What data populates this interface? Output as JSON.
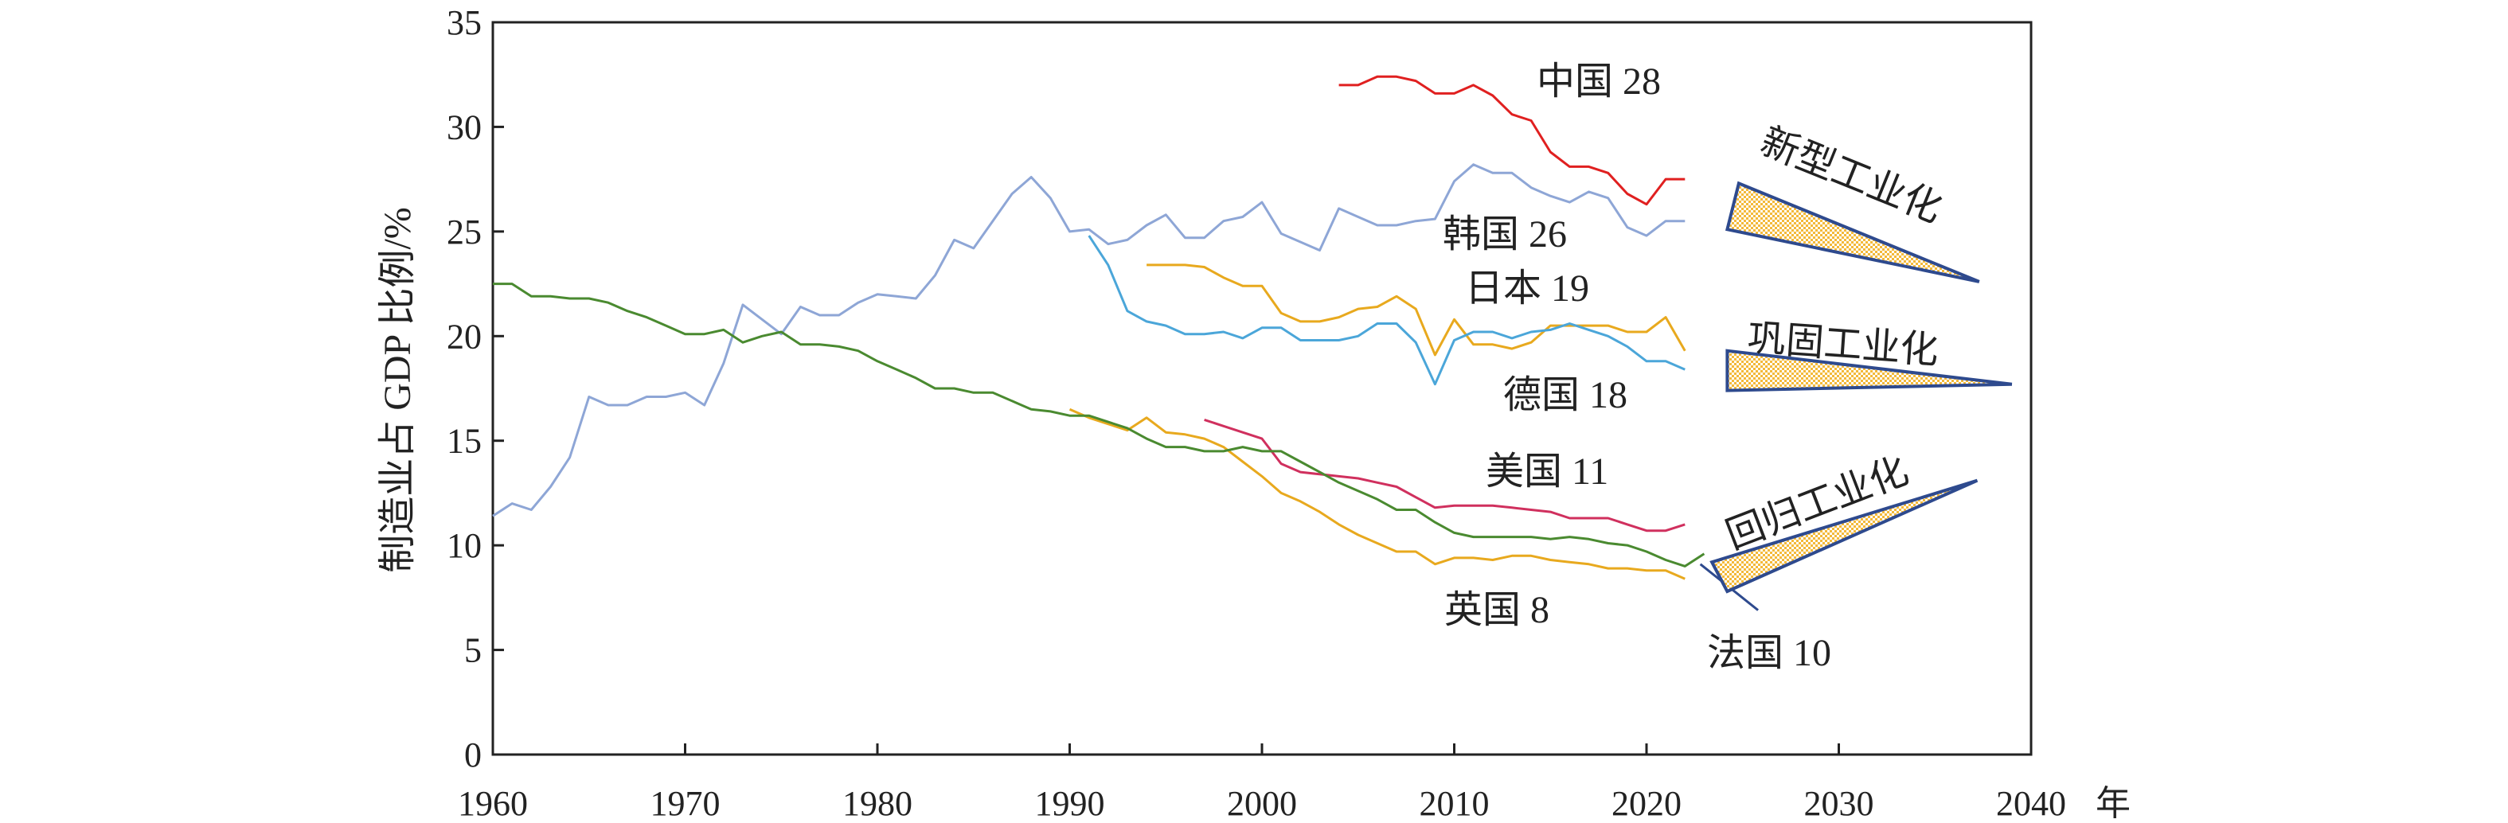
{
  "chart_data": {
    "type": "line",
    "title": "",
    "ylabel": "制造业占 GDP 比例/%",
    "xlabel_unit": "年",
    "xlim": [
      1960,
      2040
    ],
    "ylim": [
      0,
      35
    ],
    "xticks": [
      1960,
      1970,
      1980,
      1990,
      2000,
      2010,
      2020,
      2030,
      2040
    ],
    "yticks": [
      0,
      5,
      10,
      15,
      20,
      25,
      30,
      35
    ],
    "grid": false,
    "series": [
      {
        "name": "中国 28",
        "color": "#e02020",
        "x_start": 2004,
        "values": [
          32.0,
          32.0,
          32.4,
          32.4,
          32.2,
          31.6,
          31.6,
          32.0,
          31.5,
          30.6,
          30.3,
          28.8,
          28.1,
          28.1,
          27.8,
          26.8,
          26.3,
          27.5,
          27.5
        ]
      },
      {
        "name": "韩国 26",
        "color": "#8ea6d6",
        "x_start": 1960,
        "values": [
          11.4,
          12.0,
          11.7,
          12.8,
          14.2,
          17.1,
          16.7,
          16.7,
          17.1,
          17.1,
          17.3,
          16.7,
          18.7,
          21.5,
          20.8,
          20.1,
          21.4,
          21.0,
          21.0,
          21.6,
          22.0,
          21.9,
          21.8,
          22.9,
          24.6,
          24.2,
          25.5,
          26.8,
          27.6,
          26.6,
          25.0,
          25.1,
          24.4,
          24.6,
          25.3,
          25.8,
          24.7,
          24.7,
          25.5,
          25.7,
          26.4,
          24.9,
          24.5,
          24.1,
          26.1,
          25.7,
          25.3,
          25.3,
          25.5,
          25.6,
          27.4,
          28.2,
          27.8,
          27.8,
          27.1,
          26.7,
          26.4,
          26.9,
          26.6,
          25.2,
          24.8,
          25.5,
          25.5
        ]
      },
      {
        "name": "日本 19",
        "color": "#e8a91e",
        "x_start": 1994,
        "values": [
          23.4,
          23.4,
          23.4,
          23.3,
          22.8,
          22.4,
          22.4,
          21.1,
          20.7,
          20.7,
          20.9,
          21.3,
          21.4,
          21.9,
          21.3,
          19.1,
          20.8,
          19.6,
          19.6,
          19.4,
          19.7,
          20.5,
          20.5,
          20.5,
          20.5,
          20.2,
          20.2,
          20.9,
          19.3
        ]
      },
      {
        "name": "德国 18",
        "color": "#4ba6d9",
        "x_start": 1991,
        "values": [
          24.8,
          23.4,
          21.2,
          20.7,
          20.5,
          20.1,
          20.1,
          20.2,
          19.9,
          20.4,
          20.4,
          19.8,
          19.8,
          19.8,
          20.0,
          20.6,
          20.6,
          19.7,
          17.7,
          19.8,
          20.2,
          20.2,
          19.9,
          20.2,
          20.3,
          20.6,
          20.3,
          20.0,
          19.5,
          18.8,
          18.8,
          18.4
        ]
      },
      {
        "name": "美国 11",
        "color": "#d0305e",
        "x_start": 1997,
        "values": [
          16.0,
          15.7,
          15.4,
          15.1,
          13.9,
          13.5,
          13.4,
          13.3,
          13.2,
          13.0,
          12.8,
          12.3,
          11.8,
          11.9,
          11.9,
          11.9,
          11.8,
          11.7,
          11.6,
          11.3,
          11.3,
          11.3,
          11.0,
          10.7,
          10.7,
          11.0
        ]
      },
      {
        "name": "英国 8",
        "color": "#e8a91e",
        "x_start": 1990,
        "values": [
          16.5,
          16.1,
          15.8,
          15.5,
          16.1,
          15.4,
          15.3,
          15.1,
          14.7,
          14.0,
          13.3,
          12.5,
          12.1,
          11.6,
          11.0,
          10.5,
          10.1,
          9.7,
          9.7,
          9.1,
          9.4,
          9.4,
          9.3,
          9.5,
          9.5,
          9.3,
          9.2,
          9.1,
          8.9,
          8.9,
          8.8,
          8.8,
          8.4
        ]
      },
      {
        "name": "法国 10",
        "color": "#4a8a30",
        "x_start": 1960,
        "values": [
          22.5,
          22.5,
          21.9,
          21.9,
          21.8,
          21.8,
          21.6,
          21.2,
          20.9,
          20.5,
          20.1,
          20.1,
          20.3,
          19.7,
          20.0,
          20.2,
          19.6,
          19.6,
          19.5,
          19.3,
          18.8,
          18.4,
          18.0,
          17.5,
          17.5,
          17.3,
          17.3,
          16.9,
          16.5,
          16.4,
          16.2,
          16.2,
          15.9,
          15.6,
          15.1,
          14.7,
          14.7,
          14.5,
          14.5,
          14.7,
          14.5,
          14.5,
          14.0,
          13.5,
          13.0,
          12.6,
          12.2,
          11.7,
          11.7,
          11.1,
          10.6,
          10.4,
          10.4,
          10.4,
          10.4,
          10.3,
          10.4,
          10.3,
          10.1,
          10.0,
          9.7,
          9.3,
          9.0,
          9.6
        ]
      }
    ],
    "annotations": [
      {
        "text": "新型工业化",
        "shape": "wedge",
        "points": [
          [
            2024.2,
            25.1
          ],
          [
            2024.8,
            27.3
          ],
          [
            2037.3,
            22.6
          ]
        ]
      },
      {
        "text": "巩固工业化",
        "shape": "wedge",
        "points": [
          [
            2024.2,
            19.3
          ],
          [
            2024.2,
            17.4
          ],
          [
            2039.0,
            17.7
          ]
        ]
      },
      {
        "text": "回归工业化",
        "shape": "wedge",
        "points": [
          [
            2023.4,
            9.2
          ],
          [
            2024.2,
            7.8
          ],
          [
            2037.2,
            13.1
          ]
        ]
      }
    ],
    "france_trend_line": [
      [
        2022.8,
        9.1
      ],
      [
        2025.8,
        6.9
      ]
    ],
    "wedge_stroke": "#2e4a8e",
    "wedge_fill": "#f3b93a"
  }
}
